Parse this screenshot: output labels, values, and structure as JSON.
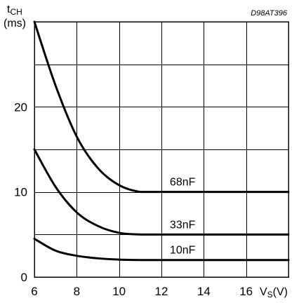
{
  "chart_data": {
    "type": "line",
    "code": "D98AT396",
    "ylabel": {
      "main": "t",
      "sub": "CH",
      "unit": "(ms)"
    },
    "xlabel": {
      "main": "V",
      "sub": "S",
      "unit": "(V)"
    },
    "xlim": [
      6,
      18
    ],
    "ylim": [
      0,
      30
    ],
    "x_ticks": [
      6,
      8,
      10,
      12,
      14,
      16
    ],
    "y_ticks": [
      0,
      10,
      20
    ],
    "x_gridlines": [
      6,
      8,
      10,
      12,
      14,
      16,
      18
    ],
    "y_gridlines": [
      0,
      5,
      10,
      15,
      20,
      25,
      30
    ],
    "grid": true,
    "series": [
      {
        "name": "68nF",
        "points": [
          [
            6,
            30
          ],
          [
            7,
            22.5
          ],
          [
            8,
            16.5
          ],
          [
            9,
            12.8
          ],
          [
            10,
            10.8
          ],
          [
            11,
            10
          ],
          [
            12,
            10
          ],
          [
            14,
            10
          ],
          [
            16,
            10
          ],
          [
            18,
            10
          ]
        ]
      },
      {
        "name": "33nF",
        "points": [
          [
            6,
            15
          ],
          [
            7,
            10.6
          ],
          [
            8,
            7.6
          ],
          [
            9,
            6
          ],
          [
            10,
            5.2
          ],
          [
            11,
            5
          ],
          [
            12,
            5
          ],
          [
            14,
            5
          ],
          [
            16,
            5
          ],
          [
            18,
            5
          ]
        ]
      },
      {
        "name": "10nF",
        "points": [
          [
            6,
            4.5
          ],
          [
            7,
            3.1
          ],
          [
            8,
            2.5
          ],
          [
            9,
            2.2
          ],
          [
            10,
            2.05
          ],
          [
            11,
            2
          ],
          [
            12,
            2
          ],
          [
            14,
            2
          ],
          [
            16,
            2
          ],
          [
            18,
            2
          ]
        ]
      }
    ]
  }
}
